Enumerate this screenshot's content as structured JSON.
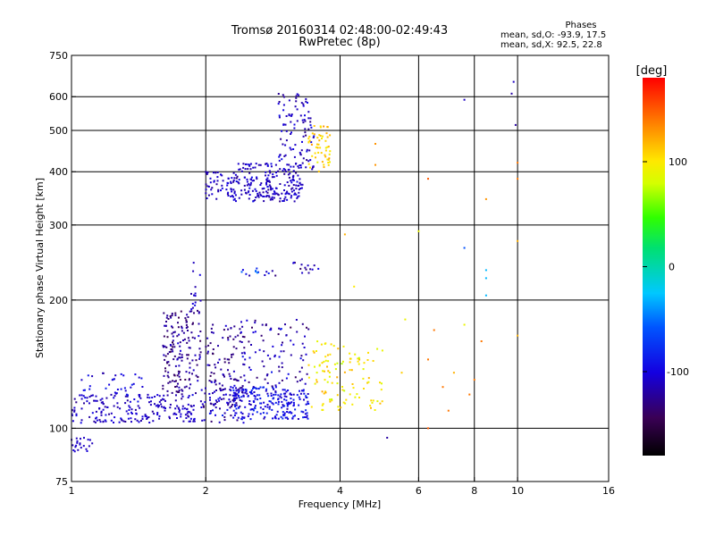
{
  "header": {
    "title_line1": "Tromsø 20160314 02:48:00-02:49:43",
    "title_line2": "RwPretec (8p)",
    "stats_title": "Phases",
    "stats_o": "mean, sd,O: -93.9, 17.5",
    "stats_x": "mean, sd,X:  92.5, 22.8"
  },
  "chart_data": {
    "type": "scatter",
    "xlabel": "Frequency [MHz]",
    "ylabel": "Stationary phase Virtual Height [km]",
    "xscale": "log",
    "yscale": "log",
    "xlim": [
      1,
      16
    ],
    "ylim": [
      75,
      750
    ],
    "xticks": [
      1,
      2,
      4,
      6,
      8,
      10,
      16
    ],
    "yticks": [
      75,
      100,
      200,
      300,
      400,
      500,
      600,
      750
    ],
    "x_gridlines": [
      2,
      4,
      6,
      8,
      10
    ],
    "y_gridlines": [
      100,
      200,
      300,
      400,
      500,
      600
    ],
    "colorbar": {
      "label": "[deg]",
      "range": [
        -180,
        180
      ],
      "ticks": [
        100,
        0,
        -100
      ]
    },
    "clusters": [
      {
        "xr": [
          1.0,
          1.13
        ],
        "yr": [
          88,
          95
        ],
        "phase": [
          -110,
          10
        ],
        "n": 22
      },
      {
        "xr": [
          1.0,
          1.9
        ],
        "yr": [
          103,
          120
        ],
        "phase": [
          -110,
          20
        ],
        "n": 200
      },
      {
        "xr": [
          1.05,
          1.45
        ],
        "yr": [
          115,
          135
        ],
        "phase": [
          -100,
          30
        ],
        "n": 40
      },
      {
        "xr": [
          1.6,
          1.95
        ],
        "yr": [
          120,
          190
        ],
        "phase": [
          -125,
          30
        ],
        "n": 170
      },
      {
        "xr": [
          1.95,
          2.45
        ],
        "yr": [
          103,
          130
        ],
        "phase": [
          -115,
          40
        ],
        "n": 110
      },
      {
        "xr": [
          2.0,
          2.45
        ],
        "yr": [
          130,
          175
        ],
        "phase": [
          -125,
          30
        ],
        "n": 70
      },
      {
        "xr": [
          2.3,
          3.4
        ],
        "yr": [
          105,
          125
        ],
        "phase": [
          -95,
          30
        ],
        "n": 220
      },
      {
        "xr": [
          2.4,
          3.4
        ],
        "yr": [
          125,
          180
        ],
        "phase": [
          -115,
          40
        ],
        "n": 90
      },
      {
        "xr": [
          3.4,
          5.0
        ],
        "yr": [
          110,
          160
        ],
        "phase": [
          100,
          40
        ],
        "n": 110
      },
      {
        "xr": [
          2.0,
          2.3
        ],
        "yr": [
          345,
          400
        ],
        "phase": [
          -110,
          20
        ],
        "n": 50
      },
      {
        "xr": [
          2.3,
          3.3
        ],
        "yr": [
          340,
          420
        ],
        "phase": [
          -110,
          25
        ],
        "n": 220
      },
      {
        "xr": [
          2.9,
          3.5
        ],
        "yr": [
          400,
          610
        ],
        "phase": [
          -110,
          30
        ],
        "n": 100
      },
      {
        "xr": [
          3.4,
          3.8
        ],
        "yr": [
          400,
          520
        ],
        "phase": [
          110,
          30
        ],
        "n": 55
      },
      {
        "xr": [
          2.4,
          2.9
        ],
        "yr": [
          228,
          238
        ],
        "phase": [
          -90,
          50
        ],
        "n": 14
      },
      {
        "xr": [
          3.1,
          3.6
        ],
        "yr": [
          228,
          245
        ],
        "phase": [
          -120,
          40
        ],
        "n": 14
      },
      {
        "xr": [
          1.85,
          1.95
        ],
        "yr": [
          190,
          250
        ],
        "phase": [
          -110,
          20
        ],
        "n": 14
      }
    ],
    "sparse_points": [
      [
        8.5,
        205,
        -30
      ],
      [
        8.5,
        225,
        -30
      ],
      [
        8.5,
        235,
        -30
      ],
      [
        7.6,
        265,
        -60
      ],
      [
        7.6,
        590,
        -110
      ],
      [
        9.7,
        610,
        -120
      ],
      [
        9.8,
        650,
        -110
      ],
      [
        9.9,
        515,
        -120
      ],
      [
        10.0,
        420,
        140
      ],
      [
        10.0,
        385,
        140
      ],
      [
        10.0,
        165,
        120
      ],
      [
        10.0,
        275,
        120
      ],
      [
        6.3,
        385,
        150
      ],
      [
        6.3,
        145,
        140
      ],
      [
        6.3,
        100,
        150
      ],
      [
        6.5,
        170,
        140
      ],
      [
        6.8,
        125,
        140
      ],
      [
        7.0,
        110,
        140
      ],
      [
        7.2,
        135,
        120
      ],
      [
        8.5,
        345,
        130
      ],
      [
        8.3,
        160,
        140
      ],
      [
        7.6,
        175,
        90
      ],
      [
        5.1,
        95,
        -120
      ],
      [
        4.8,
        415,
        130
      ],
      [
        4.8,
        465,
        130
      ],
      [
        4.1,
        285,
        120
      ],
      [
        4.3,
        215,
        100
      ],
      [
        5.5,
        135,
        110
      ],
      [
        5.6,
        180,
        90
      ],
      [
        7.8,
        120,
        140
      ],
      [
        6.0,
        290,
        90
      ],
      [
        8.0,
        130,
        140
      ]
    ]
  }
}
